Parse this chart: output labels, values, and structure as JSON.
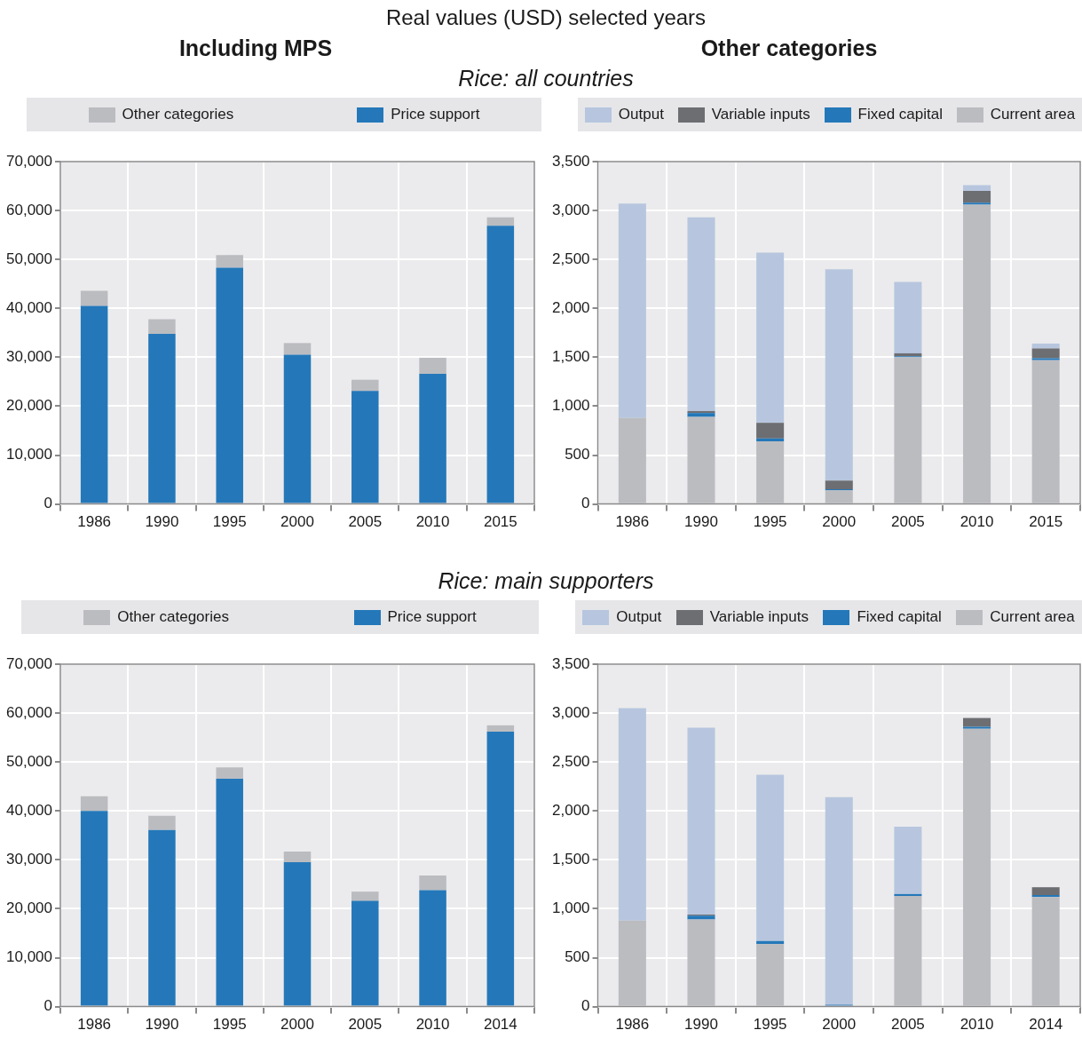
{
  "chart_data": [
    {
      "type": "bar",
      "subtitle": "Real values (USD) selected years",
      "title": "Including MPS",
      "annotations": [
        "Rice: all countries"
      ],
      "stacked": true,
      "grid": true,
      "legend": "top",
      "categories": [
        "1986",
        "1990",
        "1995",
        "2000",
        "2005",
        "2010",
        "2015"
      ],
      "ylim": [
        0,
        70000
      ],
      "yticks": [
        {
          "value": 0,
          "label": "0"
        },
        {
          "value": 10000,
          "label": "10,000"
        },
        {
          "value": 20000,
          "label": "20,000"
        },
        {
          "value": 30000,
          "label": "30,000"
        },
        {
          "value": 40000,
          "label": "40,000"
        },
        {
          "value": 50000,
          "label": "50,000"
        },
        {
          "value": 60000,
          "label": "60,000"
        },
        {
          "value": 70000,
          "label": "70,000"
        }
      ],
      "series": [
        {
          "name": "Price support",
          "color": "#2478b9",
          "values": [
            40500,
            34800,
            48300,
            30500,
            23100,
            26600,
            56900
          ]
        },
        {
          "name": "Other categories",
          "color": "#bbbcc0",
          "values": [
            3100,
            3000,
            2600,
            2400,
            2300,
            3300,
            1700
          ]
        }
      ]
    },
    {
      "type": "bar",
      "title": "Other categories",
      "stacked": true,
      "grid": true,
      "legend": "top",
      "categories": [
        "1986",
        "1990",
        "1995",
        "2000",
        "2005",
        "2010",
        "2015"
      ],
      "ylim": [
        0,
        3500
      ],
      "yticks": [
        {
          "value": 0,
          "label": "0"
        },
        {
          "value": 500,
          "label": "500"
        },
        {
          "value": 1000,
          "label": "1,000"
        },
        {
          "value": 1500,
          "label": "1,500"
        },
        {
          "value": 2000,
          "label": "2,000"
        },
        {
          "value": 2500,
          "label": "2,500"
        },
        {
          "value": 3000,
          "label": "3,000"
        },
        {
          "value": 3500,
          "label": "3,500"
        }
      ],
      "series": [
        {
          "name": "Current area",
          "color": "#bbbcc0",
          "values": [
            880,
            890,
            640,
            140,
            1500,
            3060,
            1470
          ]
        },
        {
          "name": "Fixed capital",
          "color": "#2478b9",
          "values": [
            0,
            40,
            30,
            10,
            10,
            20,
            20
          ]
        },
        {
          "name": "Variable inputs",
          "color": "#6d6e72",
          "values": [
            0,
            20,
            160,
            90,
            30,
            120,
            100
          ]
        },
        {
          "name": "Output",
          "color": "#b7c6de",
          "values": [
            2190,
            1980,
            1740,
            2160,
            730,
            60,
            50
          ]
        }
      ]
    },
    {
      "type": "bar",
      "annotations": [
        "Rice: main supporters"
      ],
      "stacked": true,
      "grid": true,
      "legend": "top",
      "categories": [
        "1986",
        "1990",
        "1995",
        "2000",
        "2005",
        "2010",
        "2014"
      ],
      "ylim": [
        0,
        70000
      ],
      "yticks": [
        {
          "value": 0,
          "label": "0"
        },
        {
          "value": 10000,
          "label": "10,000"
        },
        {
          "value": 20000,
          "label": "20,000"
        },
        {
          "value": 30000,
          "label": "30,000"
        },
        {
          "value": 40000,
          "label": "40,000"
        },
        {
          "value": 50000,
          "label": "50,000"
        },
        {
          "value": 60000,
          "label": "60,000"
        },
        {
          "value": 70000,
          "label": "70,000"
        }
      ],
      "series": [
        {
          "name": "Price support",
          "color": "#2478b9",
          "values": [
            40000,
            36100,
            46600,
            29500,
            21600,
            23800,
            56200
          ]
        },
        {
          "name": "Other categories",
          "color": "#bbbcc0",
          "values": [
            3000,
            2900,
            2300,
            2200,
            1900,
            3000,
            1300
          ]
        }
      ]
    },
    {
      "type": "bar",
      "stacked": true,
      "grid": true,
      "legend": "top",
      "categories": [
        "1986",
        "1990",
        "1995",
        "2000",
        "2005",
        "2010",
        "2014"
      ],
      "ylim": [
        0,
        3500
      ],
      "yticks": [
        {
          "value": 0,
          "label": "0"
        },
        {
          "value": 500,
          "label": "500"
        },
        {
          "value": 1000,
          "label": "1,000"
        },
        {
          "value": 1500,
          "label": "1,500"
        },
        {
          "value": 2000,
          "label": "2,000"
        },
        {
          "value": 2500,
          "label": "2,500"
        },
        {
          "value": 3000,
          "label": "3,000"
        },
        {
          "value": 3500,
          "label": "3,500"
        }
      ],
      "series": [
        {
          "name": "Current area",
          "color": "#bbbcc0",
          "values": [
            880,
            890,
            640,
            0,
            1130,
            2840,
            1120
          ]
        },
        {
          "name": "Fixed capital",
          "color": "#2478b9",
          "values": [
            0,
            40,
            30,
            20,
            20,
            20,
            20
          ]
        },
        {
          "name": "Variable inputs",
          "color": "#6d6e72",
          "values": [
            0,
            10,
            0,
            0,
            0,
            90,
            80
          ]
        },
        {
          "name": "Output",
          "color": "#b7c6de",
          "values": [
            2170,
            1910,
            1700,
            2120,
            690,
            0,
            0
          ]
        }
      ]
    }
  ]
}
